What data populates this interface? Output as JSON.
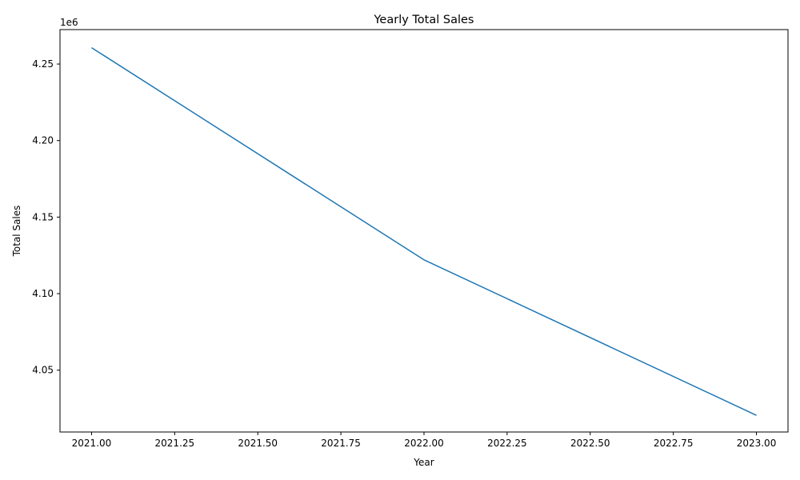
{
  "chart_data": {
    "type": "line",
    "title": "Yearly Total Sales",
    "xlabel": "Year",
    "ylabel": "Total Sales",
    "y_offset_label": "1e6",
    "xlim": [
      2020.905,
      2023.095
    ],
    "ylim": [
      4009600,
      4272500
    ],
    "x_ticks": [
      2021.0,
      2021.25,
      2021.5,
      2021.75,
      2022.0,
      2022.25,
      2022.5,
      2022.75,
      2023.0
    ],
    "x_tick_labels": [
      "2021.00",
      "2021.25",
      "2021.50",
      "2021.75",
      "2022.00",
      "2022.25",
      "2022.50",
      "2022.75",
      "2023.00"
    ],
    "y_ticks": [
      4050000,
      4100000,
      4150000,
      4200000,
      4250000
    ],
    "y_tick_labels": [
      "4.05",
      "4.10",
      "4.15",
      "4.20",
      "4.25"
    ],
    "grid": false,
    "series": [
      {
        "color": "#1f77b4",
        "x": [
          2021,
          2022,
          2023
        ],
        "values": [
          4260700,
          4122100,
          4020500
        ]
      }
    ]
  }
}
